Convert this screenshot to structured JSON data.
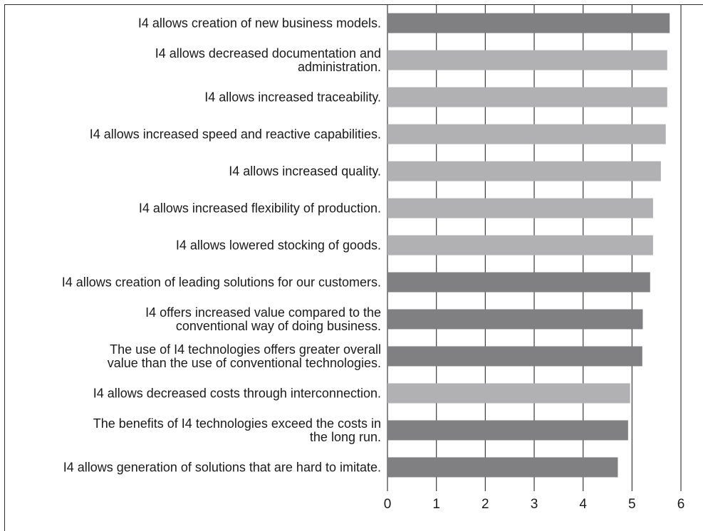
{
  "chart_data": {
    "type": "bar",
    "orientation": "horizontal",
    "grid": true,
    "xlim": [
      0,
      6
    ],
    "x_ticks": [
      "0",
      "1",
      "2",
      "3",
      "4",
      "5",
      "6"
    ],
    "colors": {
      "dark": "#808083",
      "light": "#b1b1b4",
      "grid": "#3a3a3a"
    },
    "categories": [
      [
        "I4 allows creation of new business models."
      ],
      [
        "I4 allows decreased documentation and",
        "administration."
      ],
      [
        "I4 allows increased traceability."
      ],
      [
        "I4 allows increased speed and reactive capabilities."
      ],
      [
        "I4 allows increased quality."
      ],
      [
        "I4 allows increased flexibility of production."
      ],
      [
        "I4 allows lowered stocking of goods."
      ],
      [
        "I4 allows creation of leading solutions for our customers."
      ],
      [
        "I4 offers increased value compared to the",
        "conventional way of doing business."
      ],
      [
        "The use of I4 technologies offers greater overall",
        "value than the use of conventional technologies."
      ],
      [
        "I4 allows decreased costs through interconnection."
      ],
      [
        "The benefits of I4 technologies exceed the costs in",
        "the long run."
      ],
      [
        "I4 allows generation of solutions that are hard to imitate."
      ]
    ],
    "values": [
      5.77,
      5.72,
      5.72,
      5.69,
      5.59,
      5.43,
      5.43,
      5.37,
      5.22,
      5.21,
      4.96,
      4.92,
      4.71
    ],
    "shade": [
      "dark",
      "light",
      "light",
      "light",
      "light",
      "light",
      "light",
      "dark",
      "dark",
      "dark",
      "light",
      "dark",
      "dark"
    ]
  }
}
